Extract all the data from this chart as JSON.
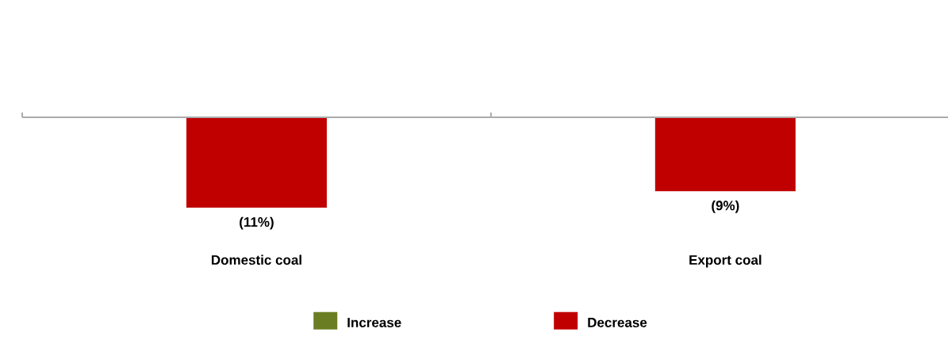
{
  "chart_data": {
    "type": "bar",
    "categories": [
      "Domestic coal",
      "Export coal"
    ],
    "series": [
      {
        "name": "Increase",
        "color": "#6b7d23",
        "values": [
          null,
          null
        ]
      },
      {
        "name": "Decrease",
        "color": "#c00000",
        "values": [
          -11,
          -9
        ],
        "value_labels": [
          "(11%)",
          "(9%)"
        ]
      }
    ],
    "legend": "bottom"
  }
}
